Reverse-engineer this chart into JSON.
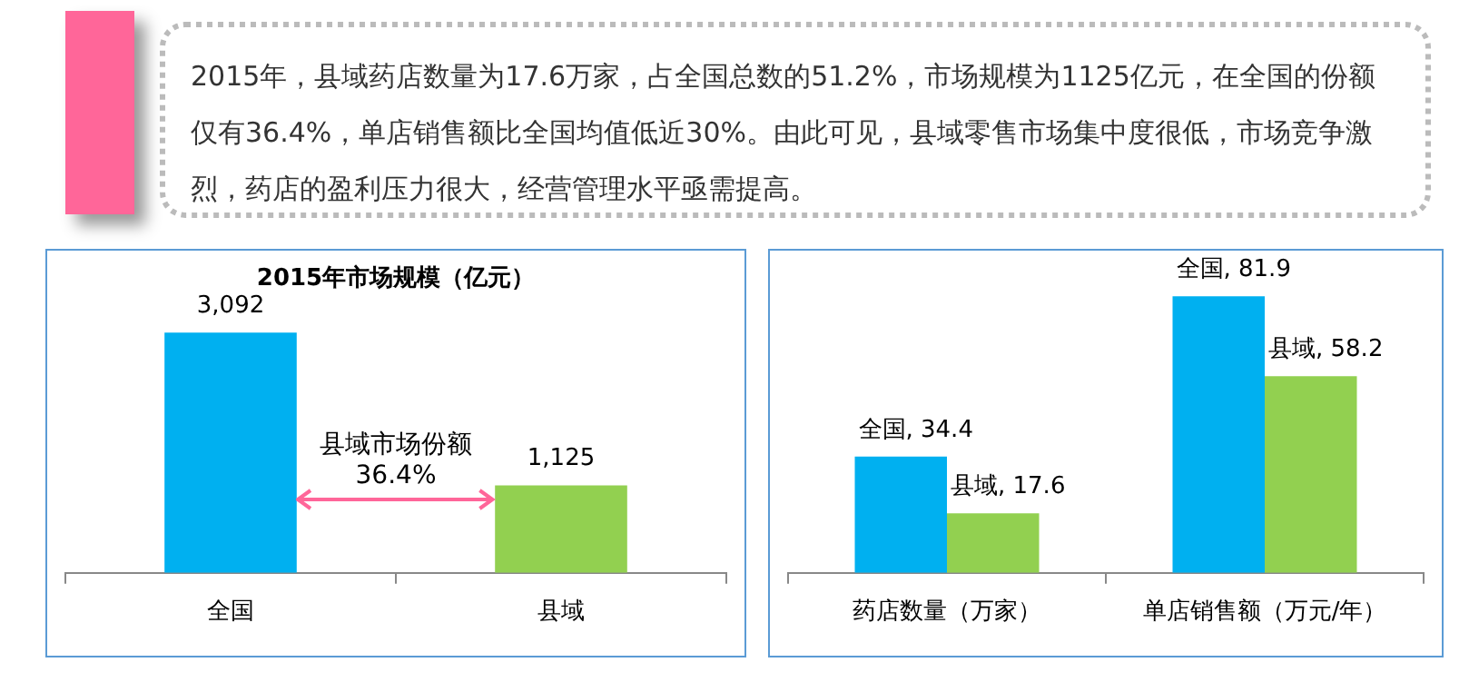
{
  "chart_data": [
    {
      "type": "other",
      "annotations": [
        "2015年，县域药店数量为17.6万家，占全国总数的51.2%，市场规模为1125亿元，在全国的份额仅有36.4%，单店销售额比全国均值低近30%。由此可见，县域零售市场集中度很低，市场竞争激烈，药店的盈利压力很大，经营管理水平亟需提高。"
      ]
    },
    {
      "type": "bar",
      "title": "2015年市场规模（亿元）",
      "categories": [
        "全国",
        "县域"
      ],
      "values": [
        3092,
        1125
      ],
      "colors": [
        "#00b0f0",
        "#92d050"
      ],
      "value_labels": [
        "3,092",
        "1,125"
      ],
      "annotations": [
        "县域市场份额\n36.4%"
      ]
    },
    {
      "type": "bar",
      "categories": [
        "药店数量（万家）",
        "单店销售额（万元/年）"
      ],
      "series": [
        {
          "name": "全国",
          "color": "#00b0f0",
          "values": [
            34.4,
            81.9
          ],
          "value_labels": [
            ", 34.4",
            ", 81.9"
          ]
        },
        {
          "name": "县域",
          "color": "#92d050",
          "values": [
            17.6,
            58.2
          ],
          "value_labels": [
            ", 17.6",
            ", 58.2"
          ]
        }
      ]
    }
  ]
}
